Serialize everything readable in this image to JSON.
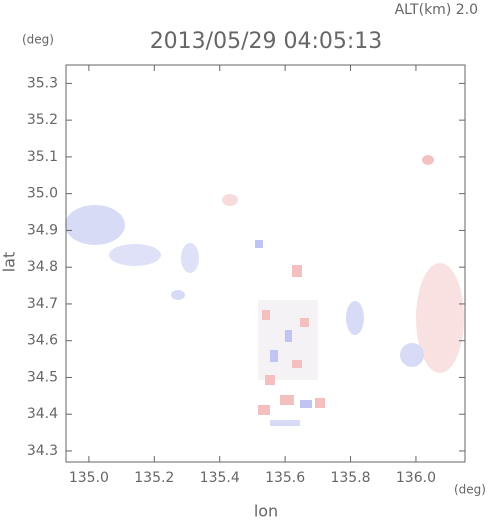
{
  "chart_data": {
    "type": "map",
    "title": "2013/05/29 04:05:13",
    "subtitle": "ALT(km) 2.0",
    "y_unit": "(deg)",
    "x_unit": "(deg)",
    "y_label": "lat",
    "x_label": "lon",
    "xlim": [
      134.93,
      136.15
    ],
    "ylim": [
      34.27,
      35.35
    ],
    "xticks": [
      {
        "value": 135,
        "label": "135.0"
      },
      135.2,
      135.4,
      135.6,
      135.8,
      {
        "value": 136,
        "label": "136.0"
      }
    ],
    "yticks": [
      34.3,
      34.4,
      34.5,
      34.6,
      34.7,
      34.8,
      34.9,
      {
        "value": 35,
        "label": "35.0"
      },
      35.1,
      35.2,
      35.3
    ]
  }
}
